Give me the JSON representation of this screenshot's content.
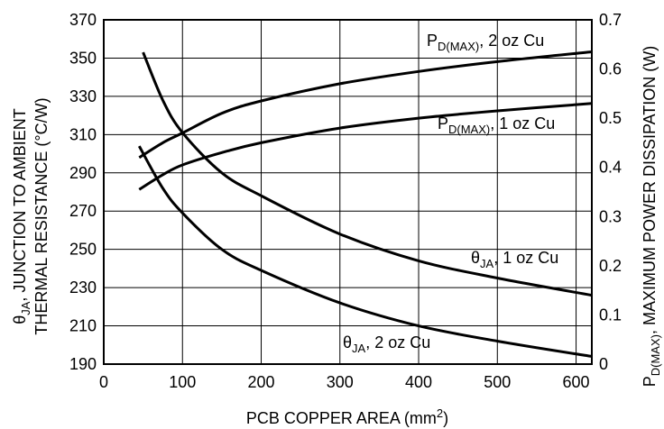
{
  "chart_data": {
    "type": "line",
    "xlabel_main": "PCB COPPER AREA (mm",
    "xlabel_sup": "2",
    "xlabel_end": ")",
    "ylabel_left_line1_main": "θ",
    "ylabel_left_line1_sub": "JA",
    "ylabel_left_line1_rest": ", JUNCTION TO AMBIENT",
    "ylabel_left_line2": "THERMAL RESISTANCE (°C/W)",
    "ylabel_right_main": "P",
    "ylabel_right_sub": "D(MAX)",
    "ylabel_right_rest": ", MAXIMUM POWER DISSIPATION (W)",
    "x_ticks": [
      "0",
      "100",
      "200",
      "300",
      "400",
      "500",
      "600"
    ],
    "y_left_ticks": [
      "190",
      "210",
      "230",
      "250",
      "270",
      "290",
      "310",
      "330",
      "350",
      "370"
    ],
    "y_right_ticks": [
      "0",
      "0.1",
      "0.2",
      "0.3",
      "0.4",
      "0.5",
      "0.6",
      "0.7"
    ],
    "xlim": [
      0,
      620
    ],
    "ylim_left": [
      190,
      370
    ],
    "ylim_right": [
      0,
      0.7
    ],
    "grid": true,
    "series": [
      {
        "name": "θJA, 1 oz Cu",
        "axis": "left",
        "x": [
          50,
          75,
          100,
          150,
          200,
          300,
          400,
          500,
          620
        ],
        "y": [
          353,
          328,
          311,
          290,
          278,
          258,
          244,
          235,
          226
        ]
      },
      {
        "name": "θJA, 2 oz Cu",
        "axis": "left",
        "x": [
          45,
          75,
          100,
          150,
          200,
          300,
          400,
          500,
          620
        ],
        "y": [
          304,
          282,
          269,
          250,
          239,
          222,
          210,
          202,
          194
        ]
      },
      {
        "name": "PD(MAX), 2 oz Cu",
        "axis": "right",
        "x": [
          45,
          75,
          100,
          150,
          200,
          300,
          400,
          500,
          620
        ],
        "y": [
          0.42,
          0.45,
          0.47,
          0.51,
          0.535,
          0.57,
          0.595,
          0.615,
          0.635
        ]
      },
      {
        "name": "PD(MAX), 1 oz Cu",
        "axis": "right",
        "x": [
          45,
          75,
          100,
          150,
          200,
          300,
          400,
          500,
          620
        ],
        "y": [
          0.355,
          0.385,
          0.405,
          0.43,
          0.45,
          0.48,
          0.5,
          0.515,
          0.53
        ]
      }
    ],
    "annotations": [
      {
        "main": "P",
        "sub": "D(MAX)",
        "rest": ", 2 oz Cu"
      },
      {
        "main": "P",
        "sub": "D(MAX)",
        "rest": ", 1 oz Cu"
      },
      {
        "main": "θ",
        "sub": "JA",
        "rest": ", 1 oz Cu"
      },
      {
        "main": "θ",
        "sub": "JA",
        "rest": ", 2 oz Cu"
      }
    ]
  }
}
